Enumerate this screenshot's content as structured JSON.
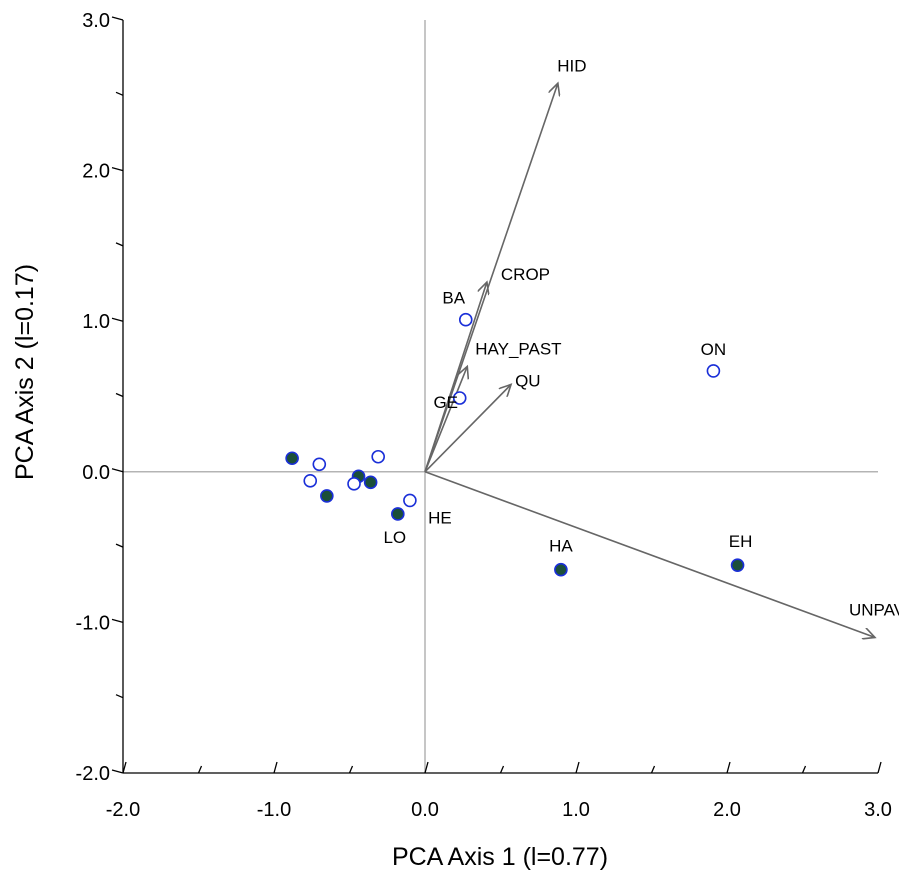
{
  "chart_data": {
    "type": "scatter",
    "xlabel": "PCA Axis 1 (l=0.77)",
    "ylabel": "PCA Axis 2 (l=0.17)",
    "xlim": [
      -2.0,
      3.0
    ],
    "ylim": [
      -2.0,
      3.0
    ],
    "x_ticks": [
      "-2.0",
      "-1.0",
      "0.0",
      "1.0",
      "2.0",
      "3.0"
    ],
    "y_ticks": [
      "-2.0",
      "-1.0",
      "0.0",
      "1.0",
      "2.0",
      "3.0"
    ],
    "grid": false,
    "reference_lines": {
      "x": 0,
      "y": 0,
      "color": "#b4b4b4"
    },
    "vectors": [
      {
        "label": "HID",
        "x": 0.88,
        "y": 2.58
      },
      {
        "label": "CROP",
        "x": 0.41,
        "y": 1.26
      },
      {
        "label": "HAY_PAST",
        "x": 0.28,
        "y": 0.7
      },
      {
        "label": "QU",
        "x": 0.57,
        "y": 0.58
      },
      {
        "label": "UNPAV",
        "x": 2.98,
        "y": -1.1
      }
    ],
    "series": [
      {
        "marker": "filled",
        "fill": "#1b4f3a",
        "stroke": "#1a2fd8",
        "points": [
          {
            "x": -0.88,
            "y": 0.09,
            "label": ""
          },
          {
            "x": -0.65,
            "y": -0.16,
            "label": ""
          },
          {
            "x": -0.44,
            "y": -0.03,
            "label": ""
          },
          {
            "x": -0.36,
            "y": -0.07,
            "label": ""
          },
          {
            "x": -0.18,
            "y": -0.28,
            "label": "LO"
          },
          {
            "x": 0.9,
            "y": -0.65,
            "label": "HA"
          },
          {
            "x": 2.07,
            "y": -0.62,
            "label": "EH"
          }
        ]
      },
      {
        "marker": "open",
        "fill": "#ffffff",
        "stroke": "#1a2fd8",
        "points": [
          {
            "x": -0.7,
            "y": 0.05,
            "label": ""
          },
          {
            "x": -0.76,
            "y": -0.06,
            "label": ""
          },
          {
            "x": -0.47,
            "y": -0.08,
            "label": ""
          },
          {
            "x": -0.31,
            "y": 0.1,
            "label": ""
          },
          {
            "x": -0.1,
            "y": -0.19,
            "label": "HE"
          },
          {
            "x": 0.27,
            "y": 1.01,
            "label": "BA"
          },
          {
            "x": 0.23,
            "y": 0.49,
            "label": "GE"
          },
          {
            "x": 1.91,
            "y": 0.67,
            "label": "ON"
          }
        ]
      }
    ]
  }
}
